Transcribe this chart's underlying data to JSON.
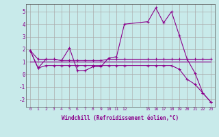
{
  "xlabel": "Windchill (Refroidissement éolien,°C)",
  "bg_color": "#c8eaea",
  "line_color": "#8b008b",
  "grid_color": "#aaaaaa",
  "xlim": [
    -0.5,
    23.5
  ],
  "ylim": [
    -2.6,
    5.6
  ],
  "yticks": [
    -2,
    -1,
    0,
    1,
    2,
    3,
    4,
    5
  ],
  "xtick_positions": [
    0,
    1,
    2,
    3,
    4,
    5,
    6,
    7,
    8,
    9,
    10,
    11,
    12,
    15,
    16,
    17,
    18,
    19,
    20,
    21,
    22,
    23
  ],
  "xtick_labels": [
    "0",
    "1",
    "2",
    "3",
    "4",
    "5",
    "6",
    "7",
    "8",
    "9",
    "10",
    "11",
    "12",
    "15",
    "16",
    "17",
    "18",
    "19",
    "20",
    "21",
    "22",
    "23"
  ],
  "series": [
    {
      "x": [
        0,
        1,
        2,
        3,
        4,
        5,
        6,
        7,
        8,
        9,
        10,
        11,
        12,
        15,
        16,
        17,
        18,
        19,
        20,
        21,
        22,
        23
      ],
      "y": [
        1.9,
        0.5,
        1.2,
        1.2,
        1.1,
        2.1,
        0.3,
        0.3,
        0.6,
        0.6,
        1.3,
        1.4,
        4.0,
        4.2,
        5.3,
        4.1,
        5.0,
        3.1,
        1.2,
        0.1,
        -1.5,
        -2.2
      ],
      "has_markers": true
    },
    {
      "x": [
        0,
        1,
        2,
        3,
        4,
        5,
        6,
        7,
        8,
        9,
        10,
        11,
        12,
        15,
        16,
        17,
        18,
        19,
        20,
        21,
        22,
        23
      ],
      "y": [
        1.9,
        1.2,
        1.2,
        1.2,
        1.1,
        1.1,
        1.1,
        1.1,
        1.1,
        1.1,
        1.2,
        1.2,
        1.2,
        1.2,
        1.2,
        1.2,
        1.2,
        1.2,
        1.2,
        1.2,
        1.2,
        1.2
      ],
      "has_markers": true
    },
    {
      "x": [
        0,
        1,
        2,
        3,
        4,
        5,
        6,
        7,
        8,
        9,
        10,
        11,
        12,
        15,
        16,
        17,
        18,
        19,
        20,
        21,
        22,
        23
      ],
      "y": [
        1.9,
        0.5,
        0.7,
        0.7,
        0.7,
        0.7,
        0.7,
        0.7,
        0.7,
        0.7,
        0.7,
        0.7,
        0.7,
        0.7,
        0.7,
        0.7,
        0.7,
        0.4,
        -0.4,
        -0.8,
        -1.5,
        -2.2
      ],
      "has_markers": true
    },
    {
      "x": [
        0,
        23
      ],
      "y": [
        1.0,
        1.0
      ],
      "has_markers": false
    }
  ]
}
